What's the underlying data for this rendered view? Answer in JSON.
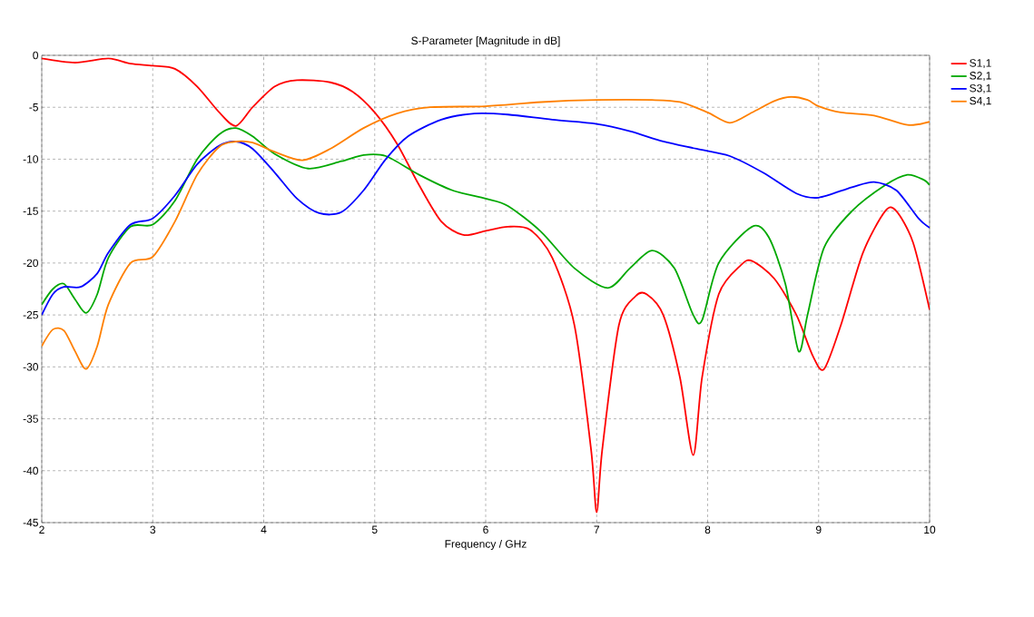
{
  "chart_data": {
    "type": "line",
    "title": "S-Parameter [Magnitude in dB]",
    "xlabel": "Frequency / GHz",
    "xlim": [
      2,
      10
    ],
    "xticks": [
      2,
      3,
      4,
      5,
      6,
      7,
      8,
      9,
      10
    ],
    "ylim": [
      -45,
      0
    ],
    "yticks": [
      -45,
      -40,
      -35,
      -30,
      -25,
      -20,
      -15,
      -10,
      -5,
      0
    ],
    "grid": true,
    "legend": "right",
    "line_style": "solid",
    "marker": "none",
    "series": [
      {
        "name": "S1,1",
        "color": "#ff0000",
        "x": [
          2,
          2.3,
          2.6,
          2.8,
          3.0,
          3.2,
          3.4,
          3.6,
          3.75,
          3.9,
          4.1,
          4.3,
          4.6,
          4.8,
          5.0,
          5.2,
          5.4,
          5.6,
          5.8,
          6.0,
          6.2,
          6.4,
          6.6,
          6.8,
          6.95,
          7.0,
          7.05,
          7.2,
          7.35,
          7.45,
          7.6,
          7.75,
          7.87,
          7.95,
          8.1,
          8.3,
          8.4,
          8.6,
          8.8,
          8.95,
          9.05,
          9.2,
          9.4,
          9.6,
          9.7,
          9.85,
          10
        ],
        "values": [
          -0.3,
          -0.7,
          -0.3,
          -0.8,
          -1.0,
          -1.3,
          -3,
          -5.5,
          -6.8,
          -5,
          -3,
          -2.4,
          -2.6,
          -3.5,
          -5.5,
          -8.5,
          -12.5,
          -16,
          -17.3,
          -16.9,
          -16.5,
          -16.8,
          -19.5,
          -26,
          -38,
          -44,
          -38,
          -26,
          -23.2,
          -23,
          -25,
          -31,
          -38.5,
          -31,
          -23,
          -20.2,
          -19.8,
          -21.5,
          -25,
          -29,
          -30.2,
          -26,
          -19,
          -15,
          -15,
          -18,
          -24.5
        ]
      },
      {
        "name": "S2,1",
        "color": "#00a800",
        "x": [
          2,
          2.1,
          2.2,
          2.3,
          2.4,
          2.5,
          2.6,
          2.8,
          3.0,
          3.2,
          3.4,
          3.6,
          3.75,
          3.9,
          4.1,
          4.4,
          4.7,
          4.9,
          5.1,
          5.4,
          5.7,
          6.0,
          6.2,
          6.5,
          6.8,
          7.1,
          7.3,
          7.5,
          7.7,
          7.87,
          7.95,
          8.1,
          8.4,
          8.55,
          8.7,
          8.82,
          8.9,
          9.05,
          9.3,
          9.6,
          9.8,
          9.95,
          10
        ],
        "values": [
          -24,
          -22.5,
          -22,
          -23.5,
          -24.8,
          -23,
          -19.5,
          -16.5,
          -16.3,
          -14,
          -10,
          -7.6,
          -7,
          -7.8,
          -9.5,
          -10.9,
          -10.2,
          -9.6,
          -9.7,
          -11.5,
          -13,
          -13.8,
          -14.5,
          -17,
          -20.5,
          -22.4,
          -20.5,
          -18.8,
          -20.5,
          -25,
          -25.5,
          -20,
          -16.5,
          -17.5,
          -22,
          -28.5,
          -25,
          -18.5,
          -15,
          -12.5,
          -11.5,
          -12,
          -12.5
        ]
      },
      {
        "name": "S3,1",
        "color": "#0000ff",
        "x": [
          2,
          2.1,
          2.2,
          2.35,
          2.5,
          2.6,
          2.8,
          3.0,
          3.2,
          3.4,
          3.6,
          3.75,
          3.9,
          4.1,
          4.3,
          4.5,
          4.7,
          4.9,
          5.1,
          5.3,
          5.6,
          5.9,
          6.2,
          6.6,
          7.0,
          7.3,
          7.6,
          7.9,
          8.2,
          8.5,
          8.8,
          9.0,
          9.3,
          9.5,
          9.7,
          9.9,
          10
        ],
        "values": [
          -25,
          -23,
          -22.3,
          -22.3,
          -21,
          -19,
          -16.3,
          -15.7,
          -13.5,
          -10.5,
          -8.7,
          -8.3,
          -9,
          -11.3,
          -13.8,
          -15.2,
          -15.1,
          -13,
          -10,
          -7.8,
          -6.2,
          -5.6,
          -5.7,
          -6.2,
          -6.6,
          -7.3,
          -8.3,
          -9,
          -9.7,
          -11.3,
          -13.3,
          -13.7,
          -12.7,
          -12.2,
          -13,
          -15.7,
          -16.6
        ]
      },
      {
        "name": "S4,1",
        "color": "#ff8000",
        "x": [
          2,
          2.1,
          2.2,
          2.3,
          2.4,
          2.5,
          2.6,
          2.8,
          3.0,
          3.2,
          3.4,
          3.6,
          3.75,
          3.9,
          4.1,
          4.35,
          4.6,
          4.9,
          5.2,
          5.5,
          6.0,
          6.5,
          7.0,
          7.5,
          7.75,
          8.0,
          8.2,
          8.4,
          8.6,
          8.75,
          8.9,
          9.0,
          9.2,
          9.5,
          9.8,
          10
        ],
        "values": [
          -28,
          -26.4,
          -26.5,
          -28.5,
          -30.2,
          -28,
          -24,
          -20,
          -19.4,
          -16,
          -11.5,
          -8.8,
          -8.3,
          -8.4,
          -9.3,
          -10.1,
          -9,
          -7,
          -5.6,
          -5,
          -4.9,
          -4.5,
          -4.3,
          -4.3,
          -4.5,
          -5.5,
          -6.5,
          -5.5,
          -4.4,
          -4,
          -4.3,
          -4.9,
          -5.5,
          -5.8,
          -6.7,
          -6.4
        ]
      }
    ]
  }
}
